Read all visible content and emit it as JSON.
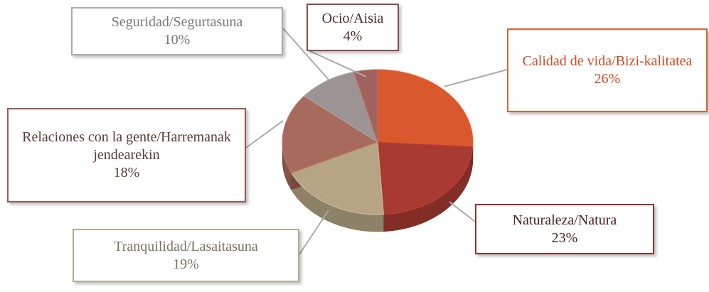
{
  "chart_data": {
    "type": "pie",
    "categories": [
      "Calidad de vida/Bizi-kalitatea",
      "Naturaleza/Natura",
      "Tranquilidad/Lasaitasuna",
      "Relaciones con la gente/Harremanak jendearekin",
      "Seguridad/Segurtasuna",
      "Ocio/Aisia"
    ],
    "values": [
      26,
      23,
      19,
      18,
      10,
      4
    ],
    "value_labels": [
      "26%",
      "23%",
      "19%",
      "18%",
      "10%",
      "4%"
    ],
    "colors": [
      "#d9582e",
      "#a83a32",
      "#b5a584",
      "#a86a5c",
      "#9c9393",
      "#a0625d"
    ]
  }
}
